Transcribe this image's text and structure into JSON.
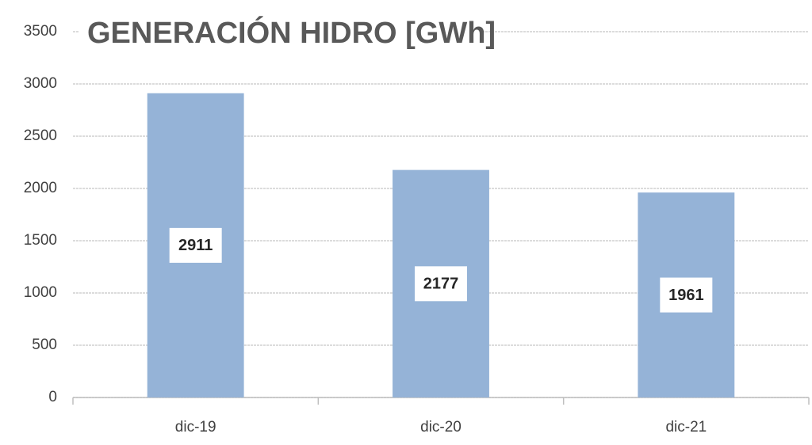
{
  "chart_data": {
    "type": "bar",
    "title": "GENERACIÓN HIDRO [GWh]",
    "categories": [
      "dic-19",
      "dic-20",
      "dic-21"
    ],
    "values": [
      2911,
      2177,
      1961
    ],
    "color": "#95b3d7",
    "ylim": [
      0,
      3500
    ],
    "yticks": [
      0,
      500,
      1000,
      1500,
      2000,
      2500,
      3000,
      3500
    ],
    "grid": true
  }
}
